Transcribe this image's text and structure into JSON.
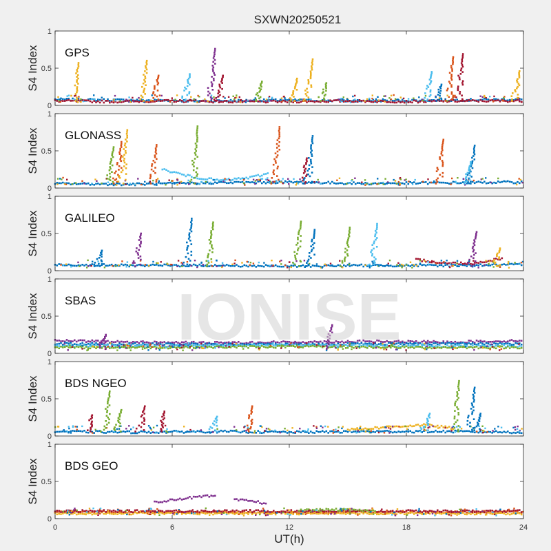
{
  "title": "SXWN20250521",
  "watermark": "IONISE",
  "chart_data": {
    "type": "scatter",
    "title": "SXWN20250521",
    "xlabel": "UT(h)",
    "ylabel": "S4 Index",
    "xlim": [
      0,
      24
    ],
    "ylim": [
      0,
      1
    ],
    "xticks": [
      0,
      6,
      12,
      18,
      24
    ],
    "xtick_labels": [
      "0",
      "6",
      "12",
      "18",
      "24"
    ],
    "yticks": [
      0,
      0.5,
      1
    ],
    "ytick_labels": [
      "0",
      "0.5",
      "1"
    ],
    "colors": [
      "#0072BD",
      "#D95319",
      "#EDB120",
      "#7E2F8E",
      "#77AC30",
      "#4DBEEE",
      "#A2142F"
    ],
    "panels": [
      {
        "name": "GPS",
        "series": [
          {
            "name": "base-blue",
            "color": "#0072BD",
            "x": [
              0,
              4,
              8,
              12,
              16,
              20,
              24
            ],
            "y": [
              0.08,
              0.07,
              0.06,
              0.07,
              0.06,
              0.07,
              0.08
            ]
          },
          {
            "name": "base-red",
            "color": "#A2142F",
            "x": [
              0,
              3,
              6,
              9,
              12,
              15,
              18,
              21,
              24
            ],
            "y": [
              0.06,
              0.05,
              0.06,
              0.05,
              0.05,
              0.06,
              0.05,
              0.06,
              0.06
            ]
          }
        ],
        "spikes": [
          {
            "x": 1.2,
            "peak": 0.57,
            "color": "#EDB120"
          },
          {
            "x": 4.7,
            "peak": 0.6,
            "color": "#EDB120"
          },
          {
            "x": 5.3,
            "peak": 0.4,
            "color": "#D95319"
          },
          {
            "x": 6.9,
            "peak": 0.42,
            "color": "#4DBEEE"
          },
          {
            "x": 8.2,
            "peak": 0.76,
            "color": "#7E2F8E"
          },
          {
            "x": 8.6,
            "peak": 0.4,
            "color": "#A2142F"
          },
          {
            "x": 10.6,
            "peak": 0.32,
            "color": "#77AC30"
          },
          {
            "x": 12.4,
            "peak": 0.36,
            "color": "#EDB120"
          },
          {
            "x": 13.2,
            "peak": 0.62,
            "color": "#EDB120"
          },
          {
            "x": 13.9,
            "peak": 0.3,
            "color": "#77AC30"
          },
          {
            "x": 19.3,
            "peak": 0.45,
            "color": "#4DBEEE"
          },
          {
            "x": 19.8,
            "peak": 0.28,
            "color": "#0072BD"
          },
          {
            "x": 20.4,
            "peak": 0.65,
            "color": "#D95319"
          },
          {
            "x": 20.9,
            "peak": 0.69,
            "color": "#A2142F"
          },
          {
            "x": 23.8,
            "peak": 0.46,
            "color": "#EDB120"
          }
        ]
      },
      {
        "name": "GLONASS",
        "series": [
          {
            "name": "base-blue",
            "color": "#0072BD",
            "x": [
              0,
              4,
              8,
              12,
              16,
              20,
              24
            ],
            "y": [
              0.06,
              0.05,
              0.07,
              0.08,
              0.06,
              0.07,
              0.08
            ]
          },
          {
            "name": "base-cyan",
            "color": "#4DBEEE",
            "x": [
              5.5,
              7,
              8.5,
              10,
              11
            ],
            "y": [
              0.25,
              0.15,
              0.1,
              0.14,
              0.2
            ]
          }
        ],
        "spikes": [
          {
            "x": 3.0,
            "peak": 0.55,
            "color": "#77AC30"
          },
          {
            "x": 3.4,
            "peak": 0.62,
            "color": "#D95319"
          },
          {
            "x": 3.7,
            "peak": 0.78,
            "color": "#EDB120"
          },
          {
            "x": 5.2,
            "peak": 0.58,
            "color": "#D95319"
          },
          {
            "x": 7.3,
            "peak": 0.83,
            "color": "#77AC30"
          },
          {
            "x": 11.5,
            "peak": 0.82,
            "color": "#D95319"
          },
          {
            "x": 12.9,
            "peak": 0.4,
            "color": "#A2142F"
          },
          {
            "x": 13.2,
            "peak": 0.7,
            "color": "#0072BD"
          },
          {
            "x": 19.9,
            "peak": 0.65,
            "color": "#D95319"
          },
          {
            "x": 21.5,
            "peak": 0.57,
            "color": "#0072BD"
          },
          {
            "x": 21.3,
            "peak": 0.35,
            "color": "#4DBEEE"
          }
        ]
      },
      {
        "name": "GALILEO",
        "series": [
          {
            "name": "base-blue",
            "color": "#0072BD",
            "x": [
              0,
              4,
              8,
              12,
              16,
              20,
              24
            ],
            "y": [
              0.08,
              0.07,
              0.07,
              0.06,
              0.07,
              0.07,
              0.08
            ]
          },
          {
            "name": "base-red",
            "color": "#A2142F",
            "x": [
              18.5,
              20,
              21.5,
              23
            ],
            "y": [
              0.15,
              0.1,
              0.1,
              0.17
            ]
          }
        ],
        "spikes": [
          {
            "x": 2.4,
            "peak": 0.27,
            "color": "#0072BD"
          },
          {
            "x": 4.4,
            "peak": 0.5,
            "color": "#7E2F8E"
          },
          {
            "x": 7.0,
            "peak": 0.7,
            "color": "#0072BD"
          },
          {
            "x": 8.1,
            "peak": 0.65,
            "color": "#77AC30"
          },
          {
            "x": 12.6,
            "peak": 0.66,
            "color": "#77AC30"
          },
          {
            "x": 13.3,
            "peak": 0.55,
            "color": "#0072BD"
          },
          {
            "x": 15.1,
            "peak": 0.58,
            "color": "#77AC30"
          },
          {
            "x": 16.5,
            "peak": 0.63,
            "color": "#4DBEEE"
          },
          {
            "x": 21.6,
            "peak": 0.52,
            "color": "#7E2F8E"
          },
          {
            "x": 22.8,
            "peak": 0.3,
            "color": "#EDB120"
          }
        ]
      },
      {
        "name": "SBAS",
        "series": [
          {
            "name": "sbas-purple",
            "color": "#7E2F8E",
            "x": [
              0,
              4,
              8,
              12,
              16,
              20,
              24
            ],
            "y": [
              0.17,
              0.15,
              0.14,
              0.15,
              0.16,
              0.15,
              0.17
            ]
          },
          {
            "name": "sbas-blue",
            "color": "#0072BD",
            "x": [
              0,
              6,
              12,
              18,
              24
            ],
            "y": [
              0.13,
              0.12,
              0.12,
              0.13,
              0.13
            ]
          },
          {
            "name": "sbas-cyan",
            "color": "#4DBEEE",
            "x": [
              0,
              6,
              12,
              18,
              24
            ],
            "y": [
              0.1,
              0.1,
              0.11,
              0.1,
              0.1
            ]
          },
          {
            "name": "sbas-green",
            "color": "#77AC30",
            "x": [
              0,
              6,
              12,
              18,
              24
            ],
            "y": [
              0.08,
              0.08,
              0.09,
              0.08,
              0.08
            ]
          }
        ],
        "spikes": [
          {
            "x": 14.2,
            "peak": 0.38,
            "color": "#7E2F8E"
          },
          {
            "x": 2.6,
            "peak": 0.25,
            "color": "#7E2F8E"
          }
        ]
      },
      {
        "name": "BDS NGEO",
        "series": [
          {
            "name": "base-blue",
            "color": "#0072BD",
            "x": [
              0,
              4,
              8,
              12,
              16,
              20,
              24
            ],
            "y": [
              0.06,
              0.05,
              0.06,
              0.05,
              0.06,
              0.06,
              0.05
            ]
          },
          {
            "name": "base-orange",
            "color": "#EDB120",
            "x": [
              15,
              17,
              19,
              20.5
            ],
            "y": [
              0.08,
              0.12,
              0.15,
              0.1
            ]
          }
        ],
        "spikes": [
          {
            "x": 1.9,
            "peak": 0.28,
            "color": "#A2142F"
          },
          {
            "x": 2.8,
            "peak": 0.6,
            "color": "#77AC30"
          },
          {
            "x": 3.4,
            "peak": 0.35,
            "color": "#77AC30"
          },
          {
            "x": 4.6,
            "peak": 0.4,
            "color": "#A2142F"
          },
          {
            "x": 5.6,
            "peak": 0.33,
            "color": "#A2142F"
          },
          {
            "x": 8.3,
            "peak": 0.26,
            "color": "#4DBEEE"
          },
          {
            "x": 10.1,
            "peak": 0.4,
            "color": "#D95319"
          },
          {
            "x": 19.2,
            "peak": 0.3,
            "color": "#4DBEEE"
          },
          {
            "x": 20.7,
            "peak": 0.74,
            "color": "#77AC30"
          },
          {
            "x": 21.5,
            "peak": 0.65,
            "color": "#0072BD"
          },
          {
            "x": 21.8,
            "peak": 0.3,
            "color": "#0072BD"
          }
        ]
      },
      {
        "name": "BDS GEO",
        "series": [
          {
            "name": "geo-orange",
            "color": "#D95319",
            "x": [
              0,
              6,
              12,
              18,
              24
            ],
            "y": [
              0.09,
              0.09,
              0.08,
              0.09,
              0.09
            ]
          },
          {
            "name": "geo-yellow",
            "color": "#EDB120",
            "x": [
              0,
              6,
              12,
              18,
              24
            ],
            "y": [
              0.07,
              0.07,
              0.07,
              0.07,
              0.07
            ]
          },
          {
            "name": "geo-red",
            "color": "#A2142F",
            "x": [
              0,
              6,
              12,
              18,
              24
            ],
            "y": [
              0.1,
              0.1,
              0.1,
              0.1,
              0.1
            ]
          },
          {
            "name": "geo-purple-arc1",
            "color": "#7E2F8E",
            "x": [
              5.1,
              6.5,
              7.8,
              8.3
            ],
            "y": [
              0.22,
              0.27,
              0.3,
              0.3
            ]
          },
          {
            "name": "geo-purple-arc2",
            "color": "#7E2F8E",
            "x": [
              9.2,
              10,
              10.9
            ],
            "y": [
              0.25,
              0.24,
              0.2
            ]
          },
          {
            "name": "geo-green",
            "color": "#77AC30",
            "x": [
              12.5,
              14.5,
              16.5
            ],
            "y": [
              0.11,
              0.12,
              0.1
            ]
          }
        ],
        "spikes": []
      }
    ]
  }
}
